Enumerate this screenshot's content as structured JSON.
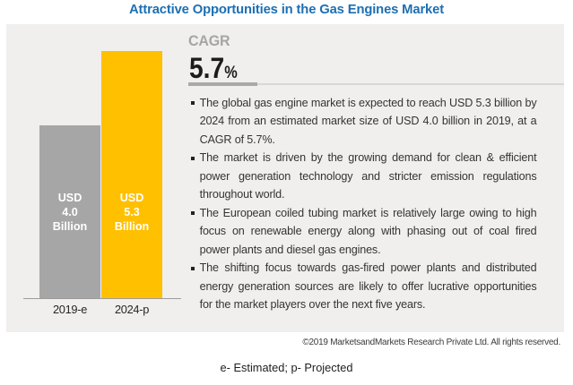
{
  "title": "Attractive Opportunities in the Gas Engines Market",
  "colors": {
    "title_blue": "#1d6fb2",
    "panel_background": "#f0efee",
    "bar_gray": "#a6a6a6",
    "bar_yellow": "#ffc000",
    "cagr_gray": "#a5a5a5",
    "text_dark": "#343434"
  },
  "chart_data": {
    "type": "bar",
    "title": "Attractive Opportunities in the Gas Engines Market",
    "categories": [
      "2019-e",
      "2024-p"
    ],
    "values": [
      4.0,
      5.3
    ],
    "unit": "USD Billion",
    "bar_value_labels": [
      "USD\n4.0\nBillion",
      "USD\n5.3\nBillion"
    ],
    "bar_colors": [
      "#a6a6a6",
      "#ffc000"
    ],
    "xlabel": "",
    "ylabel": "",
    "grid": false,
    "legend": false
  },
  "cagr": {
    "label": "CAGR",
    "value": "5.7",
    "percent_sign": "%"
  },
  "bullets": [
    "The global gas engine market is expected to reach USD 5.3 billion by 2024 from an estimated market size of USD 4.0 billion in 2019, at a CAGR of 5.7%.",
    "The market is driven by the growing demand for clean & efficient power generation technology and stricter emission regulations throughout world.",
    "The European coiled tubing market is relatively large owing to high focus on renewable energy along with phasing out of coal fired power plants and diesel gas engines.",
    "The shifting focus towards gas-fired power plants and distributed energy generation sources are likely to offer lucrative opportunities for the market players over the next five years."
  ],
  "footer": {
    "copyright": "©2019 MarketsandMarkets Research Private Ltd. All rights reserved.",
    "note": "e- Estimated; p- Projected"
  }
}
